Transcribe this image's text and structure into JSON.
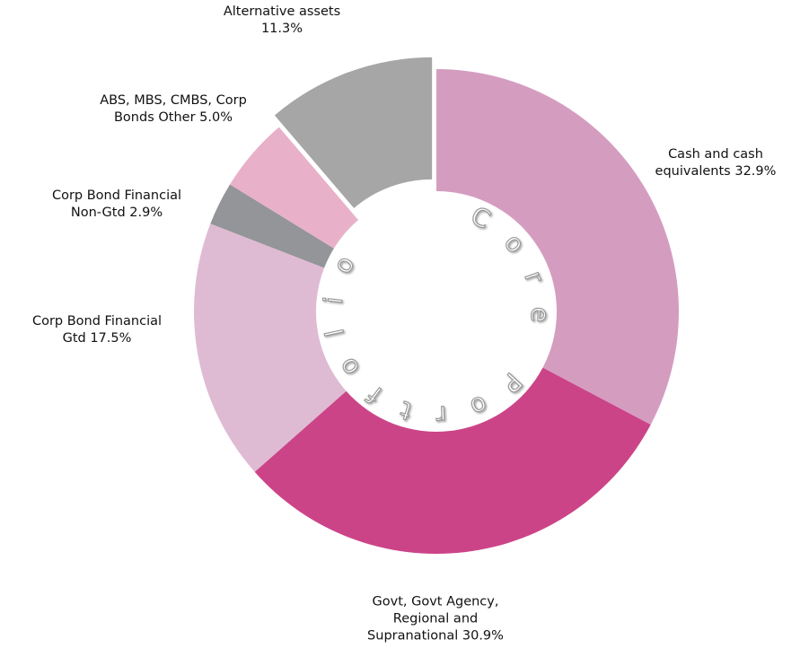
{
  "chart_data": {
    "type": "donut",
    "center_text": "Core Portfolio",
    "categories": [
      "Cash and cash equivalents",
      "Govt, Govt Agency, Regional and Supranational",
      "Corp Bond Financial Gtd",
      "Corp Bond Financial Non-Gtd",
      "ABS, MBS, CMBS, Corp Bonds Other",
      "Alternative assets"
    ],
    "values": [
      32.9,
      30.9,
      17.5,
      2.9,
      5.0,
      11.3
    ],
    "value_labels": [
      "32.9%",
      "30.9%",
      "17.5%",
      "2.9%",
      "5.0%",
      "11.3%"
    ],
    "colors": [
      "#d49dc0",
      "#cc4488",
      "#dfbbd3",
      "#939598",
      "#e8b1c9",
      "#a6a6a6"
    ],
    "exploded": [
      false,
      false,
      false,
      false,
      false,
      true
    ]
  }
}
